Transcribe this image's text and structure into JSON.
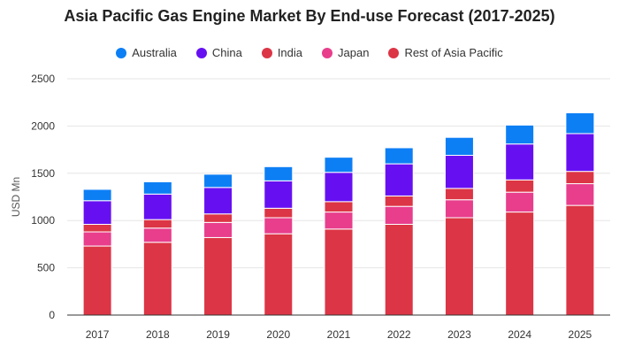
{
  "chart_data": {
    "type": "bar",
    "stacked": true,
    "title": "Asia Pacific Gas Engine Market By End-use Forecast (2017-2025)",
    "xlabel": "",
    "ylabel": "USD Mn",
    "ylim": [
      0,
      2500
    ],
    "yticks": [
      0,
      500,
      1000,
      1500,
      2000,
      2500
    ],
    "grid": true,
    "legend_position": "top",
    "categories": [
      "2017",
      "2018",
      "2019",
      "2020",
      "2021",
      "2022",
      "2023",
      "2024",
      "2025"
    ],
    "series": [
      {
        "name": "Rest of Asia Pacific",
        "color": "#dc3545",
        "values": [
          730,
          770,
          820,
          860,
          910,
          960,
          1030,
          1090,
          1160
        ]
      },
      {
        "name": "Japan",
        "color": "#e83e8c",
        "values": [
          150,
          150,
          160,
          170,
          180,
          190,
          190,
          210,
          230
        ]
      },
      {
        "name": "India",
        "color": "#dc3545",
        "values": [
          80,
          90,
          90,
          100,
          110,
          110,
          120,
          130,
          130
        ]
      },
      {
        "name": "China",
        "color": "#6610f2",
        "values": [
          250,
          270,
          280,
          290,
          310,
          340,
          350,
          380,
          400
        ]
      },
      {
        "name": "Australia",
        "color": "#0d7ff5",
        "values": [
          120,
          130,
          140,
          150,
          160,
          170,
          190,
          200,
          220
        ]
      }
    ]
  },
  "legend": [
    {
      "label": "Australia",
      "color": "#0d7ff5"
    },
    {
      "label": "China",
      "color": "#6610f2"
    },
    {
      "label": "India",
      "color": "#dc3545"
    },
    {
      "label": "Japan",
      "color": "#e83e8c"
    },
    {
      "label": "Rest of Asia Pacific",
      "color": "#dc3545"
    }
  ]
}
